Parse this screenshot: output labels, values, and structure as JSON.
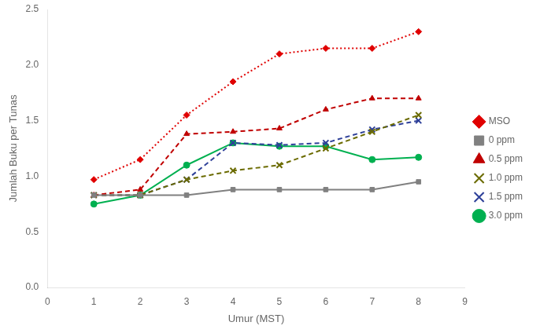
{
  "chart_data": {
    "type": "line",
    "xlabel": "Umur (MST)",
    "ylabel": "Jumlah Buku per Tunas",
    "x": [
      1,
      2,
      3,
      4,
      5,
      6,
      7,
      8
    ],
    "series": [
      {
        "name": "MSO",
        "color": "#e00000",
        "marker": "diamond",
        "line_style": "dotted",
        "values": [
          0.97,
          1.15,
          1.55,
          1.85,
          2.1,
          2.15,
          2.15,
          2.3
        ]
      },
      {
        "name": "0 ppm",
        "color": "#808080",
        "marker": "square",
        "line_style": "solid",
        "values": [
          0.83,
          0.83,
          0.83,
          0.88,
          0.88,
          0.88,
          0.88,
          0.95
        ]
      },
      {
        "name": "0.5 ppm",
        "color": "#c00000",
        "marker": "triangle",
        "line_style": "dashed",
        "values": [
          0.83,
          0.88,
          1.38,
          1.4,
          1.43,
          1.6,
          1.7,
          1.7
        ]
      },
      {
        "name": "1.0 ppm",
        "color": "#6b6b00",
        "marker": "x",
        "line_style": "dashed",
        "values": [
          0.83,
          0.83,
          0.97,
          1.05,
          1.1,
          1.25,
          1.4,
          1.55
        ]
      },
      {
        "name": "1.5 ppm",
        "color": "#2e4099",
        "marker": "x",
        "line_style": "dashed",
        "values": [
          0.83,
          0.83,
          0.97,
          1.3,
          1.28,
          1.3,
          1.42,
          1.5
        ]
      },
      {
        "name": "3.0 ppm",
        "color": "#00b050",
        "marker": "circle",
        "line_style": "solid",
        "values": [
          0.75,
          0.83,
          1.1,
          1.3,
          1.27,
          1.27,
          1.15,
          1.17
        ]
      }
    ],
    "xlim": [
      0,
      9
    ],
    "xticks": [
      0,
      1,
      2,
      3,
      4,
      5,
      6,
      7,
      8,
      9
    ],
    "ylim": [
      0,
      2.5
    ],
    "yticks": [
      {
        "value": 0,
        "label": "0.0"
      },
      0.5,
      {
        "value": 1.0,
        "label": "1.0"
      },
      1.5,
      {
        "value": 2.0,
        "label": "2.0"
      },
      2.5
    ],
    "grid": false,
    "legend": "right"
  }
}
